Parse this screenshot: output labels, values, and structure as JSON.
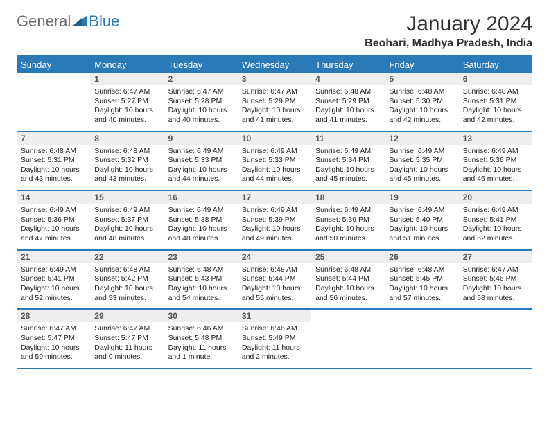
{
  "brand": {
    "text_general": "General",
    "text_blue": "Blue",
    "logo_color": "#2a7ab8",
    "text_gray": "#6b6b6b"
  },
  "title": "January 2024",
  "location": "Beohari, Madhya Pradesh, India",
  "columns": [
    "Sunday",
    "Monday",
    "Tuesday",
    "Wednesday",
    "Thursday",
    "Friday",
    "Saturday"
  ],
  "colors": {
    "header_bg": "#2a7ab8",
    "header_fg": "#ffffff",
    "daynum_bg": "#eeeeee",
    "daynum_fg": "#555555",
    "rule": "#2a7ab8",
    "text": "#222222",
    "background": "#ffffff"
  },
  "weeks": [
    [
      {
        "num": "",
        "sunrise": "",
        "sunset": "",
        "daylight": ""
      },
      {
        "num": "1",
        "sunrise": "Sunrise: 6:47 AM",
        "sunset": "Sunset: 5:27 PM",
        "daylight": "Daylight: 10 hours and 40 minutes."
      },
      {
        "num": "2",
        "sunrise": "Sunrise: 6:47 AM",
        "sunset": "Sunset: 5:28 PM",
        "daylight": "Daylight: 10 hours and 40 minutes."
      },
      {
        "num": "3",
        "sunrise": "Sunrise: 6:47 AM",
        "sunset": "Sunset: 5:29 PM",
        "daylight": "Daylight: 10 hours and 41 minutes."
      },
      {
        "num": "4",
        "sunrise": "Sunrise: 6:48 AM",
        "sunset": "Sunset: 5:29 PM",
        "daylight": "Daylight: 10 hours and 41 minutes."
      },
      {
        "num": "5",
        "sunrise": "Sunrise: 6:48 AM",
        "sunset": "Sunset: 5:30 PM",
        "daylight": "Daylight: 10 hours and 42 minutes."
      },
      {
        "num": "6",
        "sunrise": "Sunrise: 6:48 AM",
        "sunset": "Sunset: 5:31 PM",
        "daylight": "Daylight: 10 hours and 42 minutes."
      }
    ],
    [
      {
        "num": "7",
        "sunrise": "Sunrise: 6:48 AM",
        "sunset": "Sunset: 5:31 PM",
        "daylight": "Daylight: 10 hours and 43 minutes."
      },
      {
        "num": "8",
        "sunrise": "Sunrise: 6:48 AM",
        "sunset": "Sunset: 5:32 PM",
        "daylight": "Daylight: 10 hours and 43 minutes."
      },
      {
        "num": "9",
        "sunrise": "Sunrise: 6:49 AM",
        "sunset": "Sunset: 5:33 PM",
        "daylight": "Daylight: 10 hours and 44 minutes."
      },
      {
        "num": "10",
        "sunrise": "Sunrise: 6:49 AM",
        "sunset": "Sunset: 5:33 PM",
        "daylight": "Daylight: 10 hours and 44 minutes."
      },
      {
        "num": "11",
        "sunrise": "Sunrise: 6:49 AM",
        "sunset": "Sunset: 5:34 PM",
        "daylight": "Daylight: 10 hours and 45 minutes."
      },
      {
        "num": "12",
        "sunrise": "Sunrise: 6:49 AM",
        "sunset": "Sunset: 5:35 PM",
        "daylight": "Daylight: 10 hours and 45 minutes."
      },
      {
        "num": "13",
        "sunrise": "Sunrise: 6:49 AM",
        "sunset": "Sunset: 5:36 PM",
        "daylight": "Daylight: 10 hours and 46 minutes."
      }
    ],
    [
      {
        "num": "14",
        "sunrise": "Sunrise: 6:49 AM",
        "sunset": "Sunset: 5:36 PM",
        "daylight": "Daylight: 10 hours and 47 minutes."
      },
      {
        "num": "15",
        "sunrise": "Sunrise: 6:49 AM",
        "sunset": "Sunset: 5:37 PM",
        "daylight": "Daylight: 10 hours and 48 minutes."
      },
      {
        "num": "16",
        "sunrise": "Sunrise: 6:49 AM",
        "sunset": "Sunset: 5:38 PM",
        "daylight": "Daylight: 10 hours and 48 minutes."
      },
      {
        "num": "17",
        "sunrise": "Sunrise: 6:49 AM",
        "sunset": "Sunset: 5:39 PM",
        "daylight": "Daylight: 10 hours and 49 minutes."
      },
      {
        "num": "18",
        "sunrise": "Sunrise: 6:49 AM",
        "sunset": "Sunset: 5:39 PM",
        "daylight": "Daylight: 10 hours and 50 minutes."
      },
      {
        "num": "19",
        "sunrise": "Sunrise: 6:49 AM",
        "sunset": "Sunset: 5:40 PM",
        "daylight": "Daylight: 10 hours and 51 minutes."
      },
      {
        "num": "20",
        "sunrise": "Sunrise: 6:49 AM",
        "sunset": "Sunset: 5:41 PM",
        "daylight": "Daylight: 10 hours and 52 minutes."
      }
    ],
    [
      {
        "num": "21",
        "sunrise": "Sunrise: 6:49 AM",
        "sunset": "Sunset: 5:41 PM",
        "daylight": "Daylight: 10 hours and 52 minutes."
      },
      {
        "num": "22",
        "sunrise": "Sunrise: 6:48 AM",
        "sunset": "Sunset: 5:42 PM",
        "daylight": "Daylight: 10 hours and 53 minutes."
      },
      {
        "num": "23",
        "sunrise": "Sunrise: 6:48 AM",
        "sunset": "Sunset: 5:43 PM",
        "daylight": "Daylight: 10 hours and 54 minutes."
      },
      {
        "num": "24",
        "sunrise": "Sunrise: 6:48 AM",
        "sunset": "Sunset: 5:44 PM",
        "daylight": "Daylight: 10 hours and 55 minutes."
      },
      {
        "num": "25",
        "sunrise": "Sunrise: 6:48 AM",
        "sunset": "Sunset: 5:44 PM",
        "daylight": "Daylight: 10 hours and 56 minutes."
      },
      {
        "num": "26",
        "sunrise": "Sunrise: 6:48 AM",
        "sunset": "Sunset: 5:45 PM",
        "daylight": "Daylight: 10 hours and 57 minutes."
      },
      {
        "num": "27",
        "sunrise": "Sunrise: 6:47 AM",
        "sunset": "Sunset: 5:46 PM",
        "daylight": "Daylight: 10 hours and 58 minutes."
      }
    ],
    [
      {
        "num": "28",
        "sunrise": "Sunrise: 6:47 AM",
        "sunset": "Sunset: 5:47 PM",
        "daylight": "Daylight: 10 hours and 59 minutes."
      },
      {
        "num": "29",
        "sunrise": "Sunrise: 6:47 AM",
        "sunset": "Sunset: 5:47 PM",
        "daylight": "Daylight: 11 hours and 0 minutes."
      },
      {
        "num": "30",
        "sunrise": "Sunrise: 6:46 AM",
        "sunset": "Sunset: 5:48 PM",
        "daylight": "Daylight: 11 hours and 1 minute."
      },
      {
        "num": "31",
        "sunrise": "Sunrise: 6:46 AM",
        "sunset": "Sunset: 5:49 PM",
        "daylight": "Daylight: 11 hours and 2 minutes."
      },
      {
        "num": "",
        "sunrise": "",
        "sunset": "",
        "daylight": ""
      },
      {
        "num": "",
        "sunrise": "",
        "sunset": "",
        "daylight": ""
      },
      {
        "num": "",
        "sunrise": "",
        "sunset": "",
        "daylight": ""
      }
    ]
  ]
}
